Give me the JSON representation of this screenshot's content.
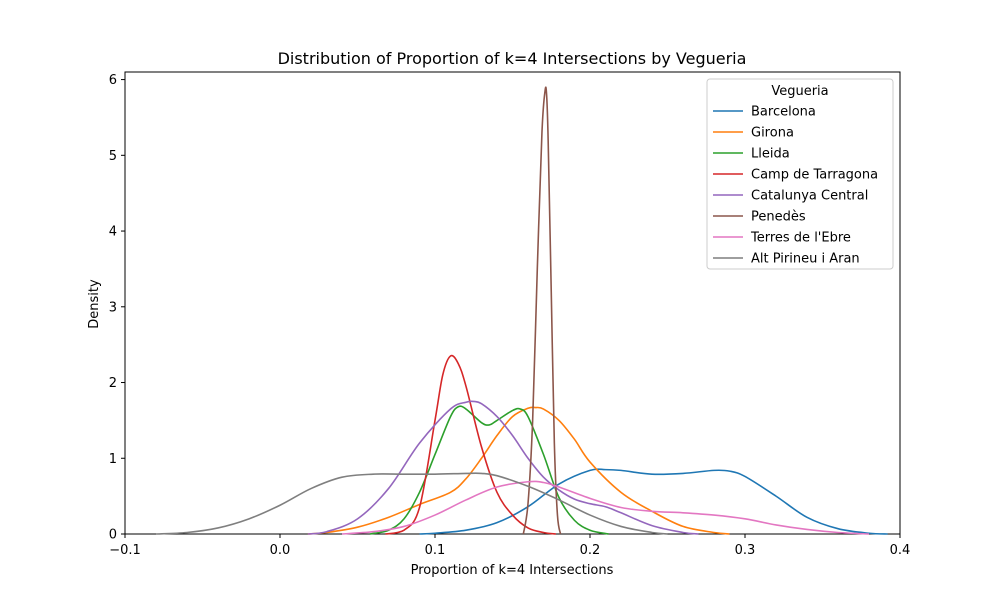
{
  "chart_data": {
    "type": "line",
    "title": "Distribution of Proportion of k=4 Intersections by Vegueria",
    "xlabel": "Proportion of k=4 Intersections",
    "ylabel": "Density",
    "xlim": [
      -0.1,
      0.4
    ],
    "ylim": [
      0,
      6.1
    ],
    "xticks": [
      -0.1,
      0.0,
      0.1,
      0.2,
      0.3,
      0.4
    ],
    "xtick_labels": [
      "−0.1",
      "0.0",
      "0.1",
      "0.2",
      "0.3",
      "0.4"
    ],
    "yticks": [
      0,
      1,
      2,
      3,
      4,
      5,
      6
    ],
    "ytick_labels": [
      "0",
      "1",
      "2",
      "3",
      "4",
      "5",
      "6"
    ],
    "grid": false,
    "legend": {
      "title": "Vegueria",
      "placement": "top-right"
    },
    "series": [
      {
        "name": "Barcelona",
        "color": "#1f77b4",
        "x": [
          0.09,
          0.1,
          0.12,
          0.14,
          0.16,
          0.18,
          0.2,
          0.21,
          0.22,
          0.24,
          0.26,
          0.28,
          0.29,
          0.3,
          0.32,
          0.34,
          0.36,
          0.38,
          0.392
        ],
        "y": [
          0.0,
          0.01,
          0.05,
          0.15,
          0.36,
          0.66,
          0.84,
          0.85,
          0.84,
          0.79,
          0.8,
          0.84,
          0.83,
          0.76,
          0.5,
          0.22,
          0.07,
          0.01,
          0.0
        ]
      },
      {
        "name": "Girona",
        "color": "#ff7f0e",
        "x": [
          0.018,
          0.03,
          0.05,
          0.07,
          0.09,
          0.11,
          0.12,
          0.13,
          0.14,
          0.15,
          0.16,
          0.165,
          0.17,
          0.18,
          0.19,
          0.2,
          0.22,
          0.24,
          0.26,
          0.28,
          0.29
        ],
        "y": [
          0.0,
          0.02,
          0.09,
          0.22,
          0.39,
          0.55,
          0.73,
          1.0,
          1.3,
          1.55,
          1.66,
          1.67,
          1.65,
          1.5,
          1.25,
          0.95,
          0.55,
          0.3,
          0.1,
          0.02,
          0.0
        ]
      },
      {
        "name": "Lleida",
        "color": "#2ca02c",
        "x": [
          0.058,
          0.07,
          0.08,
          0.09,
          0.1,
          0.11,
          0.115,
          0.12,
          0.13,
          0.135,
          0.14,
          0.15,
          0.155,
          0.16,
          0.17,
          0.18,
          0.19,
          0.2,
          0.212
        ],
        "y": [
          0.0,
          0.05,
          0.2,
          0.55,
          1.05,
          1.55,
          1.68,
          1.65,
          1.47,
          1.44,
          1.5,
          1.63,
          1.65,
          1.55,
          1.05,
          0.48,
          0.18,
          0.05,
          0.0
        ]
      },
      {
        "name": "Camp de Tarragona",
        "color": "#d62728",
        "x": [
          0.068,
          0.08,
          0.09,
          0.1,
          0.105,
          0.11,
          0.115,
          0.12,
          0.13,
          0.14,
          0.15,
          0.16,
          0.17,
          0.178
        ],
        "y": [
          0.0,
          0.05,
          0.35,
          1.5,
          2.1,
          2.35,
          2.25,
          1.95,
          1.15,
          0.55,
          0.25,
          0.08,
          0.02,
          0.0
        ]
      },
      {
        "name": "Catalunya Central",
        "color": "#9467bd",
        "x": [
          0.018,
          0.03,
          0.05,
          0.07,
          0.09,
          0.11,
          0.12,
          0.125,
          0.13,
          0.14,
          0.15,
          0.16,
          0.17,
          0.18,
          0.19,
          0.2,
          0.21,
          0.22,
          0.24,
          0.26,
          0.27
        ],
        "y": [
          0.0,
          0.03,
          0.2,
          0.6,
          1.2,
          1.65,
          1.74,
          1.75,
          1.72,
          1.55,
          1.3,
          1.0,
          0.75,
          0.58,
          0.46,
          0.4,
          0.36,
          0.28,
          0.11,
          0.02,
          0.0
        ]
      },
      {
        "name": "Penedès",
        "color": "#8c564b",
        "x": [
          0.157,
          0.16,
          0.163,
          0.166,
          0.169,
          0.171,
          0.172,
          0.173,
          0.175,
          0.177,
          0.179,
          0.181
        ],
        "y": [
          0.0,
          0.4,
          1.5,
          3.5,
          5.3,
          5.85,
          5.8,
          5.2,
          3.2,
          1.2,
          0.25,
          0.0
        ]
      },
      {
        "name": "Terres de l'Ebre",
        "color": "#e377c2",
        "x": [
          0.04,
          0.06,
          0.08,
          0.1,
          0.12,
          0.14,
          0.16,
          0.17,
          0.18,
          0.2,
          0.22,
          0.24,
          0.26,
          0.28,
          0.3,
          0.32,
          0.34,
          0.36,
          0.38
        ],
        "y": [
          0.0,
          0.03,
          0.1,
          0.25,
          0.45,
          0.62,
          0.69,
          0.68,
          0.62,
          0.47,
          0.35,
          0.3,
          0.28,
          0.25,
          0.2,
          0.12,
          0.06,
          0.02,
          0.0
        ]
      },
      {
        "name": "Alt Pirineu i Aran",
        "color": "#7f7f7f",
        "x": [
          -0.08,
          -0.06,
          -0.04,
          -0.02,
          0.0,
          0.02,
          0.04,
          0.06,
          0.08,
          0.1,
          0.12,
          0.13,
          0.14,
          0.16,
          0.18,
          0.2,
          0.22,
          0.24,
          0.25
        ],
        "y": [
          0.0,
          0.02,
          0.08,
          0.2,
          0.38,
          0.6,
          0.75,
          0.79,
          0.79,
          0.79,
          0.8,
          0.8,
          0.77,
          0.63,
          0.45,
          0.25,
          0.1,
          0.02,
          0.0
        ]
      }
    ]
  }
}
